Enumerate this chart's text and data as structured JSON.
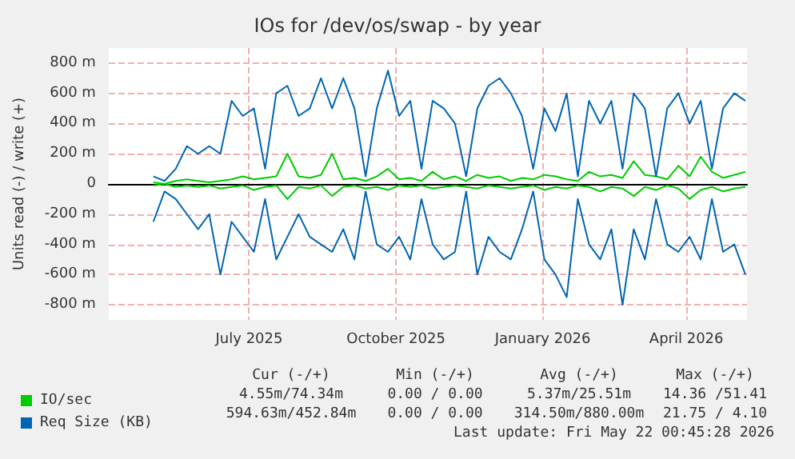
{
  "chart_data": {
    "type": "line",
    "title": "IOs for /dev/os/swap - by year",
    "ylabel": "Units read (-) / write (+)",
    "x": [
      "2025-05-17",
      "2025-05-24",
      "2025-05-31",
      "2025-06-07",
      "2025-06-14",
      "2025-06-21",
      "2025-06-28",
      "2025-07-05",
      "2025-07-12",
      "2025-07-19",
      "2025-07-26",
      "2025-08-02",
      "2025-08-09",
      "2025-08-16",
      "2025-08-23",
      "2025-08-30",
      "2025-09-06",
      "2025-09-13",
      "2025-09-20",
      "2025-09-27",
      "2025-10-04",
      "2025-10-11",
      "2025-10-18",
      "2025-10-25",
      "2025-11-01",
      "2025-11-08",
      "2025-11-15",
      "2025-11-22",
      "2025-11-29",
      "2025-12-06",
      "2025-12-13",
      "2025-12-20",
      "2025-12-27",
      "2026-01-03",
      "2026-01-10",
      "2026-01-17",
      "2026-01-24",
      "2026-01-31",
      "2026-02-07",
      "2026-02-14",
      "2026-02-21",
      "2026-02-28",
      "2026-03-07",
      "2026-03-14",
      "2026-03-21",
      "2026-03-28",
      "2026-04-04",
      "2026-04-11",
      "2026-04-18",
      "2026-04-25",
      "2026-05-02",
      "2026-05-09",
      "2026-05-16",
      "2026-05-23"
    ],
    "series": [
      {
        "name": "IO/sec",
        "color": "#00cc00",
        "values": [
          10,
          0,
          20,
          30,
          20,
          10,
          20,
          30,
          50,
          30,
          40,
          50,
          200,
          50,
          40,
          60,
          200,
          30,
          40,
          20,
          50,
          100,
          30,
          40,
          20,
          80,
          30,
          50,
          20,
          60,
          40,
          50,
          20,
          40,
          30,
          60,
          50,
          30,
          20,
          80,
          50,
          60,
          40,
          150,
          60,
          50,
          30,
          120,
          50,
          180,
          80,
          40,
          60,
          80
        ]
      },
      {
        "color": "#00cc00",
        "values": [
          -10,
          0,
          -20,
          -10,
          -20,
          -10,
          -30,
          -20,
          -10,
          -40,
          -20,
          -10,
          -100,
          -20,
          -30,
          -10,
          -80,
          -20,
          -10,
          -30,
          -20,
          -40,
          -10,
          -20,
          -10,
          -30,
          -20,
          -10,
          -20,
          -30,
          -10,
          -20,
          -30,
          -20,
          -10,
          -40,
          -20,
          -30,
          -10,
          -20,
          -50,
          -20,
          -30,
          -80,
          -20,
          -40,
          -10,
          -30,
          -100,
          -40,
          -20,
          -50,
          -30,
          -20
        ]
      },
      {
        "name": "Req Size (KB)",
        "color": "#0066b3",
        "values": [
          50,
          20,
          100,
          250,
          200,
          250,
          200,
          550,
          450,
          500,
          100,
          600,
          650,
          450,
          500,
          700,
          500,
          700,
          500,
          50,
          500,
          750,
          450,
          550,
          100,
          550,
          500,
          400,
          50,
          500,
          650,
          700,
          600,
          450,
          100,
          500,
          350,
          600,
          50,
          550,
          400,
          550,
          100,
          600,
          500,
          50,
          500,
          600,
          400,
          550,
          100,
          500,
          600,
          550
        ]
      },
      {
        "color": "#0066b3",
        "values": [
          -250,
          -50,
          -100,
          -200,
          -300,
          -200,
          -600,
          -250,
          -350,
          -450,
          -100,
          -500,
          -350,
          -200,
          -350,
          -400,
          -450,
          -300,
          -500,
          -50,
          -400,
          -450,
          -350,
          -500,
          -100,
          -400,
          -500,
          -450,
          -50,
          -600,
          -350,
          -450,
          -500,
          -300,
          -50,
          -500,
          -600,
          -750,
          -100,
          -400,
          -500,
          -300,
          -800,
          -300,
          -500,
          -100,
          -400,
          -450,
          -350,
          -500,
          -100,
          -450,
          -400,
          -600
        ]
      }
    ],
    "xlim": [
      "2025-04-19",
      "2026-05-24"
    ],
    "xticks": [
      {
        "value": "2025-07-16",
        "label": "July 2025"
      },
      {
        "value": "2025-10-16",
        "label": "October 2025"
      },
      {
        "value": "2026-01-16",
        "label": "January 2026"
      },
      {
        "value": "2026-04-16",
        "label": "April 2026"
      }
    ],
    "ylim": [
      -900,
      900
    ],
    "yticks": [
      {
        "value": -800,
        "label": "-800 m"
      },
      {
        "value": -600,
        "label": "-600 m"
      },
      {
        "value": -400,
        "label": "-400 m"
      },
      {
        "value": -200,
        "label": "-200 m"
      },
      0,
      {
        "value": 200,
        "label": "200 m"
      },
      {
        "value": 400,
        "label": "400 m"
      },
      {
        "value": 600,
        "label": "600 m"
      },
      {
        "value": 800,
        "label": "800 m"
      }
    ],
    "grid": true,
    "legend": "bottom left",
    "marker": "none",
    "line_style": "solid",
    "annotations": [
      "Cur (-/+)",
      "Min (-/+)",
      "Avg (-/+)",
      "Max (-/+)",
      "4.55m/74.34m",
      "0.00 / 0.00",
      "5.37m/25.51m",
      "14.36 /51.41",
      "594.63m/452.84m",
      "0.00 / 0.00",
      "314.50m/880.00m",
      "21.75 / 4.10",
      "Last update: Fri May 22 00:45:28 2026"
    ]
  }
}
